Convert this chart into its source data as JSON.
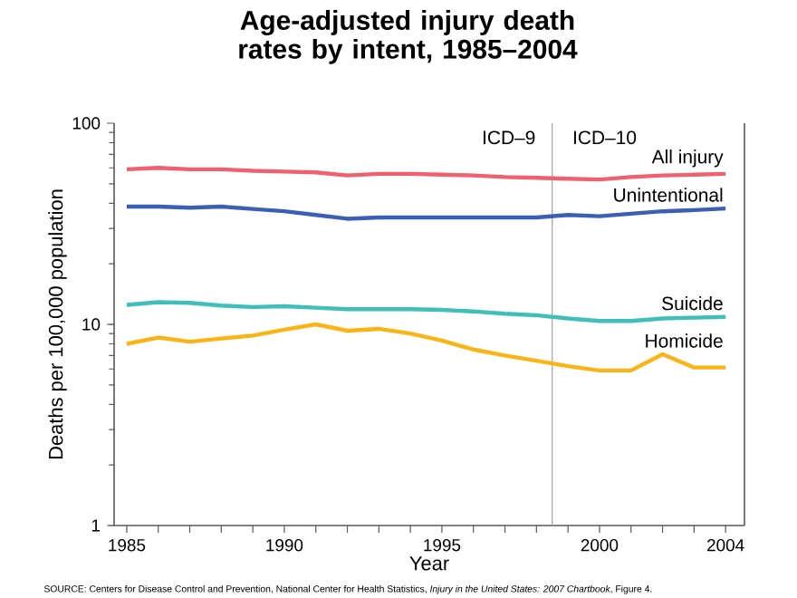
{
  "chart_data": {
    "type": "line",
    "title": "Age-adjusted injury death rates by intent, 1985–2004",
    "xlabel": "Year",
    "ylabel": "Deaths per 100,000 population",
    "x": [
      1985,
      1986,
      1987,
      1988,
      1989,
      1990,
      1991,
      1992,
      1993,
      1994,
      1995,
      1996,
      1997,
      1998,
      1999,
      2000,
      2001,
      2002,
      2003,
      2004
    ],
    "series": [
      {
        "name": "All injury",
        "color": "#f0606e",
        "values": [
          59,
          60,
          59,
          59,
          58,
          57.5,
          57,
          55,
          56,
          56,
          55.5,
          55,
          54,
          53.5,
          53,
          52.5,
          54,
          55,
          55.5,
          56
        ]
      },
      {
        "name": "Unintentional",
        "color": "#3a5fb5",
        "values": [
          38.5,
          38.5,
          38,
          38.5,
          37.5,
          36.5,
          35,
          33.5,
          34,
          34,
          34,
          34,
          34,
          34,
          35,
          34.5,
          35.5,
          36.5,
          37,
          37.7
        ]
      },
      {
        "name": "Suicide",
        "color": "#3fbfb7",
        "values": [
          12.5,
          12.9,
          12.8,
          12.4,
          12.2,
          12.3,
          12.1,
          11.9,
          11.9,
          11.9,
          11.8,
          11.6,
          11.3,
          11.1,
          10.7,
          10.4,
          10.4,
          10.7,
          10.8,
          10.9
        ]
      },
      {
        "name": "Homicide",
        "color": "#fbb416",
        "values": [
          8.0,
          8.6,
          8.2,
          8.5,
          8.8,
          9.4,
          10.0,
          9.3,
          9.5,
          9.0,
          8.3,
          7.5,
          7.0,
          6.6,
          6.2,
          5.9,
          5.9,
          7.1,
          6.1,
          6.1
        ]
      }
    ],
    "xlim": [
      1984.6,
      2004.6
    ],
    "ylim": [
      1,
      100
    ],
    "log": true,
    "xticks": [
      1985,
      {
        "value": 1986,
        "label": null
      },
      {
        "value": 1987,
        "label": null
      },
      {
        "value": 1988,
        "label": null
      },
      {
        "value": 1989,
        "label": null
      },
      1990,
      {
        "value": 1991,
        "label": null
      },
      {
        "value": 1992,
        "label": null
      },
      {
        "value": 1993,
        "label": null
      },
      {
        "value": 1994,
        "label": null
      },
      1995,
      {
        "value": 1996,
        "label": null
      },
      {
        "value": 1997,
        "label": null
      },
      {
        "value": 1998,
        "label": null
      },
      {
        "value": 1999,
        "label": null
      },
      2000,
      {
        "value": 2001,
        "label": null
      },
      {
        "value": 2002,
        "label": null
      },
      {
        "value": 2003,
        "label": null
      },
      2004
    ],
    "yticks": [
      1,
      10,
      100
    ],
    "ref_lines": [
      {
        "axis": "x",
        "value": 1998.5,
        "label": "ICD–9",
        "color": "#a0a0a0"
      }
    ],
    "annotations": [
      "ICD–10",
      "SOURCE: Centers for Disease Control and Prevention, National Center for Health Statistics, *Injury in the United States: 2007 Chartbook*, Figure 4."
    ],
    "grid": false,
    "line_style": "solid",
    "marker": "none"
  }
}
